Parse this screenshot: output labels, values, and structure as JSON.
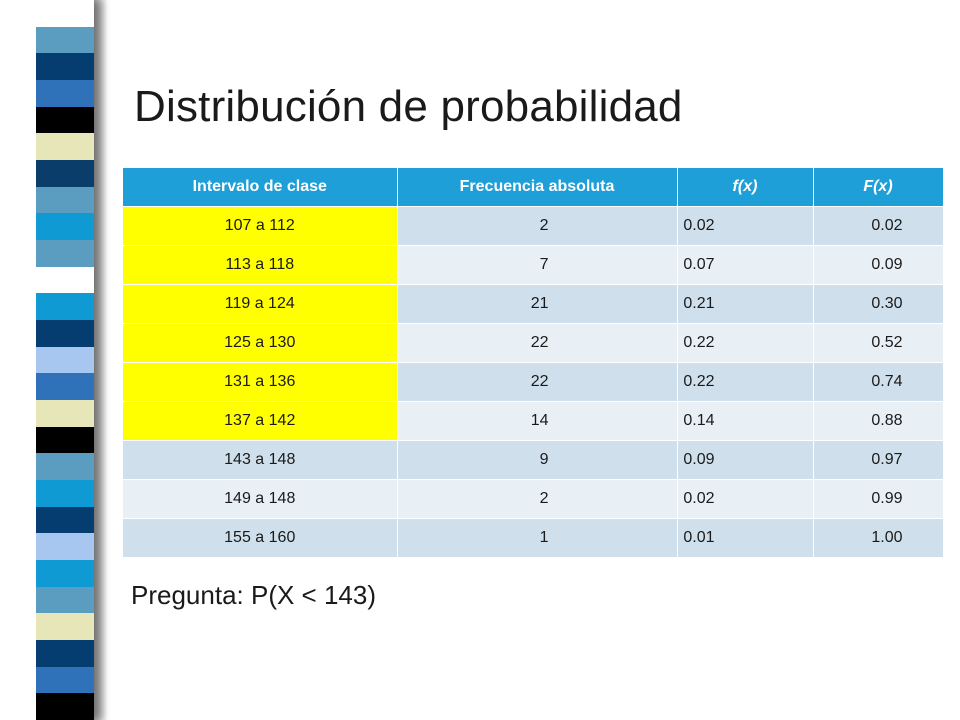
{
  "title": "Distribución de probabilidad",
  "colors": {
    "header": "#1e9fd8",
    "row_even": "#cfe0ec",
    "row_odd": "#e8f0f6",
    "highlight": "#ffff00"
  },
  "decorative_stripes": [
    "#ffffff",
    "#5b9dc0",
    "#053d70",
    "#3072ba",
    "#000000",
    "#e6e6b8",
    "#0b3d6b",
    "#5b9dc0",
    "#0f9ad4",
    "#5b9dc0",
    "#ffffff",
    "#0f9ad4",
    "#053d70",
    "#a7c6f0",
    "#3072ba",
    "#e6e6b8",
    "#000000",
    "#5b9dc0",
    "#0f9ad4",
    "#053d70",
    "#a7c6f0",
    "#0f9ad4",
    "#5b9dc0",
    "#e6e6b8",
    "#053d70",
    "#3072ba",
    "#000000"
  ],
  "table": {
    "headers": [
      "Intervalo de clase",
      "Frecuencia absoluta",
      "f(x)",
      "F(x)"
    ],
    "rows": [
      {
        "interval": "107 a 112",
        "count": "2",
        "fx": "0.02",
        "Fx": "0.02",
        "highlight": true
      },
      {
        "interval": "113 a 118",
        "count": "7",
        "fx": "0.07",
        "Fx": "0.09",
        "highlight": true
      },
      {
        "interval": "119 a 124",
        "count": "21",
        "fx": "0.21",
        "Fx": "0.30",
        "highlight": true
      },
      {
        "interval": "125 a 130",
        "count": "22",
        "fx": "0.22",
        "Fx": "0.52",
        "highlight": true
      },
      {
        "interval": "131 a 136",
        "count": "22",
        "fx": "0.22",
        "Fx": "0.74",
        "highlight": true
      },
      {
        "interval": "137 a 142",
        "count": "14",
        "fx": "0.14",
        "Fx": "0.88",
        "highlight": true
      },
      {
        "interval": "143 a 148",
        "count": "9",
        "fx": "0.09",
        "Fx": "0.97",
        "highlight": false
      },
      {
        "interval": "149 a 148",
        "count": "2",
        "fx": "0.02",
        "Fx": "0.99",
        "highlight": false
      },
      {
        "interval": "155 a 160",
        "count": "1",
        "fx": "0.01",
        "Fx": "1.00",
        "highlight": false
      }
    ]
  },
  "question": "Pregunta: P(X < 143)"
}
